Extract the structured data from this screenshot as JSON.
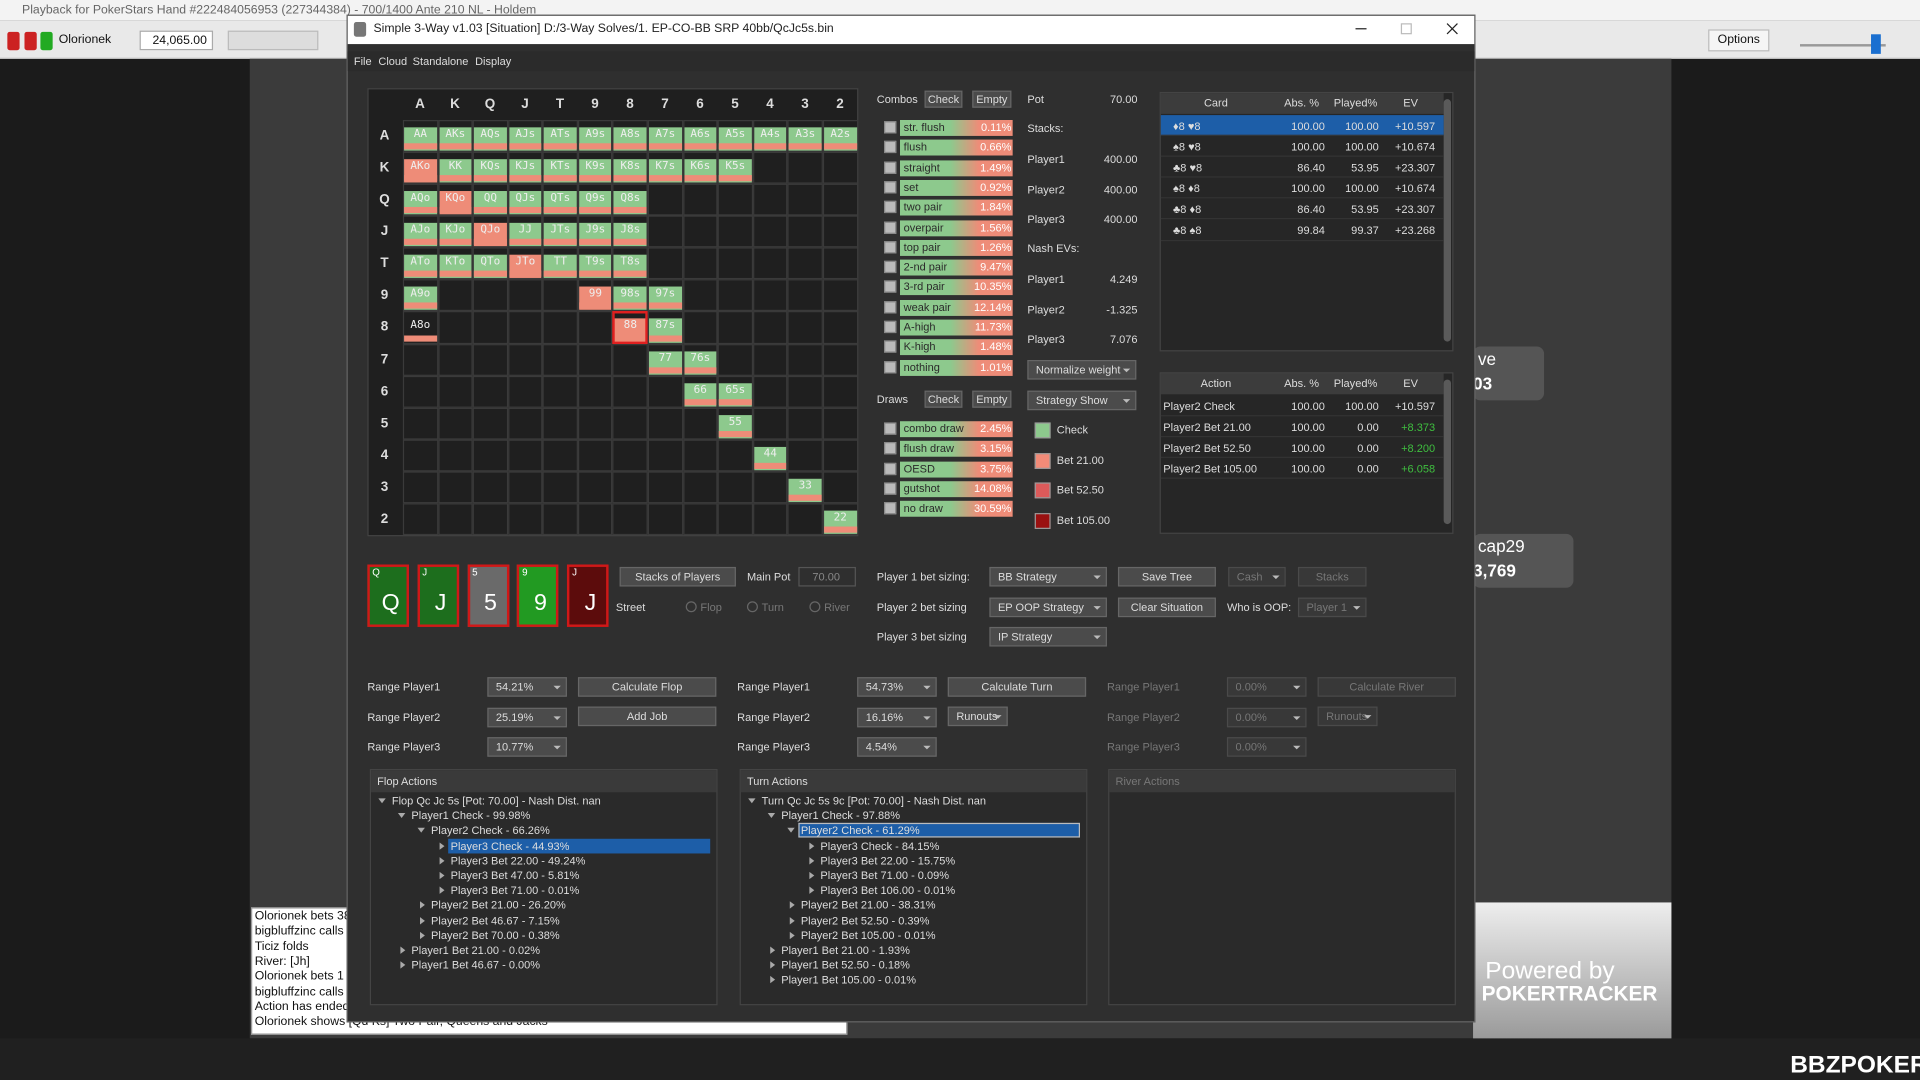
{
  "background_app": {
    "title": "Playback for PokerStars Hand #222484056953 (227344384) - 700/1400 Ante 210 NL - Holdem",
    "player": "Olorionek",
    "stack": "24,065.00",
    "options": "Options",
    "chat": [
      "Olorionek bets 38",
      "bigbluffzinc calls",
      "Ticiz folds",
      "River: [Jh]",
      "Olorionek bets 1",
      "bigbluffzinc calls",
      "Action has ended",
      "Olorionek shows [Qd Ks] Two Pair, Queens and Jacks"
    ],
    "seats": [
      {
        "name": "ve",
        "stack": "03"
      },
      {
        "name": "cap29",
        "stack": "3,769"
      }
    ],
    "powered_by": "Powered by",
    "brand": "POKERTRACKER",
    "watermark": "BBZPOKER"
  },
  "window": {
    "title": "Simple 3-Way v1.03 [Situation] D:/3-Way Solves/1. EP-CO-BB SRP 40bb/QcJc5s.bin",
    "menu": [
      "File",
      "Cloud",
      "Standalone",
      "Display"
    ]
  },
  "range_grid": {
    "columns": [
      "A",
      "K",
      "Q",
      "J",
      "T",
      "9",
      "8",
      "7",
      "6",
      "5",
      "4",
      "3",
      "2"
    ],
    "rows": [
      {
        "label": "A",
        "cells": [
          "AA",
          "AKs",
          "AQs",
          "AJs",
          "ATs",
          "A9s",
          "A8s",
          "A7s",
          "A6s",
          "A5s",
          "A4s",
          "A3s",
          "A2s"
        ]
      },
      {
        "label": "K",
        "cells": [
          "AKo",
          "KK",
          "KQs",
          "KJs",
          "KTs",
          "K9s",
          "K8s",
          "K7s",
          "K6s",
          "K5s",
          null,
          null,
          null
        ]
      },
      {
        "label": "Q",
        "cells": [
          "AQo",
          "KQo",
          "QQ",
          "QJs",
          "QTs",
          "Q9s",
          "Q8s",
          null,
          null,
          null,
          null,
          null,
          null
        ]
      },
      {
        "label": "J",
        "cells": [
          "AJo",
          "KJo",
          "QJo",
          "JJ",
          "JTs",
          "J9s",
          "J8s",
          null,
          null,
          null,
          null,
          null,
          null
        ]
      },
      {
        "label": "T",
        "cells": [
          "ATo",
          "KTo",
          "QTo",
          "JTo",
          "TT",
          "T9s",
          "T8s",
          null,
          null,
          null,
          null,
          null,
          null
        ]
      },
      {
        "label": "9",
        "cells": [
          "A9o",
          null,
          null,
          null,
          null,
          "99",
          "98s",
          "97s",
          null,
          null,
          null,
          null,
          null
        ]
      },
      {
        "label": "8",
        "cells": [
          "A8o",
          null,
          null,
          null,
          null,
          null,
          "88",
          "87s",
          null,
          null,
          null,
          null,
          null
        ]
      },
      {
        "label": "7",
        "cells": [
          null,
          null,
          null,
          null,
          null,
          null,
          null,
          "77",
          "76s",
          null,
          null,
          null,
          null
        ]
      },
      {
        "label": "6",
        "cells": [
          null,
          null,
          null,
          null,
          null,
          null,
          null,
          null,
          "66",
          "65s",
          null,
          null,
          null
        ]
      },
      {
        "label": "5",
        "cells": [
          null,
          null,
          null,
          null,
          null,
          null,
          null,
          null,
          null,
          "55",
          null,
          null,
          null
        ]
      },
      {
        "label": "4",
        "cells": [
          null,
          null,
          null,
          null,
          null,
          null,
          null,
          null,
          null,
          null,
          "44",
          null,
          null
        ]
      },
      {
        "label": "3",
        "cells": [
          null,
          null,
          null,
          null,
          null,
          null,
          null,
          null,
          null,
          null,
          null,
          "33",
          null
        ]
      },
      {
        "label": "2",
        "cells": [
          null,
          null,
          null,
          null,
          null,
          null,
          null,
          null,
          null,
          null,
          null,
          null,
          "22"
        ]
      }
    ]
  },
  "combos": {
    "title": "Combos",
    "check": "Check",
    "empty": "Empty",
    "items": [
      {
        "label": "str. flush",
        "value": "0.11%"
      },
      {
        "label": "flush",
        "value": "0.66%"
      },
      {
        "label": "straight",
        "value": "1.49%"
      },
      {
        "label": "set",
        "value": "0.92%"
      },
      {
        "label": "two pair",
        "value": "1.84%"
      },
      {
        "label": "overpair",
        "value": "1.56%"
      },
      {
        "label": "top pair",
        "value": "1.26%"
      },
      {
        "label": "2-nd pair",
        "value": "9.47%"
      },
      {
        "label": "3-rd pair",
        "value": "10.35%"
      },
      {
        "label": "weak pair",
        "value": "12.14%"
      },
      {
        "label": "A-high",
        "value": "11.73%"
      },
      {
        "label": "K-high",
        "value": "1.48%"
      },
      {
        "label": "nothing",
        "value": "1.01%"
      }
    ]
  },
  "draws": {
    "title": "Draws",
    "check": "Check",
    "empty": "Empty",
    "items": [
      {
        "label": "combo draw",
        "value": "2.45%"
      },
      {
        "label": "flush draw",
        "value": "3.15%"
      },
      {
        "label": "OESD",
        "value": "3.75%"
      },
      {
        "label": "gutshot",
        "value": "14.08%"
      },
      {
        "label": "no draw",
        "value": "30.59%"
      }
    ]
  },
  "pot": {
    "label": "Pot",
    "value": "70.00"
  },
  "stacks": {
    "label": "Stacks:",
    "players": [
      {
        "name": "Player1",
        "value": "400.00"
      },
      {
        "name": "Player2",
        "value": "400.00"
      },
      {
        "name": "Player3",
        "value": "400.00"
      }
    ]
  },
  "nash_evs": {
    "label": "Nash EVs:",
    "players": [
      {
        "name": "Player1",
        "value": "4.249"
      },
      {
        "name": "Player2",
        "value": "-1.325"
      },
      {
        "name": "Player3",
        "value": "7.076"
      }
    ]
  },
  "normalize": "Normalize weight",
  "strategy_show": "Strategy Show",
  "legend": [
    {
      "label": "Check",
      "color": "#8dc98d"
    },
    {
      "label": "Bet 21.00",
      "color": "#f28b78"
    },
    {
      "label": "Bet 52.50",
      "color": "#dc5a5a"
    },
    {
      "label": "Bet 105.00",
      "color": "#9a1010"
    }
  ],
  "card_table": {
    "headers": [
      "Card",
      "Abs. %",
      "Played%",
      "EV"
    ],
    "rows": [
      [
        "♦8 ♥8",
        "100.00",
        "100.00",
        "+10.597"
      ],
      [
        "♠8 ♥8",
        "100.00",
        "100.00",
        "+10.674"
      ],
      [
        "♣8 ♥8",
        "86.40",
        "53.95",
        "+23.307"
      ],
      [
        "♠8 ♦8",
        "100.00",
        "100.00",
        "+10.674"
      ],
      [
        "♣8 ♦8",
        "86.40",
        "53.95",
        "+23.307"
      ],
      [
        "♣8 ♠8",
        "99.84",
        "99.37",
        "+23.268"
      ]
    ]
  },
  "action_table": {
    "headers": [
      "Action",
      "Abs. %",
      "Played%",
      "EV"
    ],
    "rows": [
      [
        "Player2 Check",
        "100.00",
        "100.00",
        "+10.597"
      ],
      [
        "Player2 Bet 21.00",
        "100.00",
        "0.00",
        "+8.373"
      ],
      [
        "Player2 Bet 52.50",
        "100.00",
        "0.00",
        "+8.200"
      ],
      [
        "Player2 Bet 105.00",
        "100.00",
        "0.00",
        "+6.058"
      ]
    ]
  },
  "board": {
    "cards": [
      {
        "rank": "Q",
        "color": "#1d6e1d"
      },
      {
        "rank": "J",
        "color": "#1d6e1d"
      },
      {
        "rank": "5",
        "color": "#6a6a6a"
      },
      {
        "rank": "9",
        "color": "#229a22"
      },
      {
        "rank": "J",
        "color": "#5c0c0c"
      }
    ]
  },
  "controls": {
    "stacks_of_players": "Stacks of Players",
    "main_pot_label": "Main Pot",
    "main_pot": "70.00",
    "street_label": "Street",
    "streets": [
      "Flop",
      "Turn",
      "River"
    ],
    "bet_sizing": [
      {
        "label": "Player 1 bet sizing:",
        "value": "BB Strategy"
      },
      {
        "label": "Player 2 bet sizing",
        "value": "EP OOP Strategy"
      },
      {
        "label": "Player 3 bet sizing",
        "value": "IP Strategy"
      }
    ],
    "save_tree": "Save Tree",
    "clear_situation": "Clear Situation",
    "cash": "Cash",
    "stacks": "Stacks",
    "who_is_oop": "Who is OOP:",
    "oop_player": "Player 1"
  },
  "ranges": [
    {
      "rows": [
        {
          "label": "Range Player1",
          "value": "54.21%"
        },
        {
          "label": "Range Player2",
          "value": "25.19%"
        },
        {
          "label": "Range Player3",
          "value": "10.77%"
        }
      ],
      "buttons": [
        "Calculate Flop",
        "Add Job"
      ]
    },
    {
      "rows": [
        {
          "label": "Range Player1",
          "value": "54.73%"
        },
        {
          "label": "Range Player2",
          "value": "16.16%"
        },
        {
          "label": "Range Player3",
          "value": "4.54%"
        }
      ],
      "buttons": [
        "Calculate Turn",
        "Runouts"
      ]
    },
    {
      "rows": [
        {
          "label": "Range Player1",
          "value": "0.00%"
        },
        {
          "label": "Range Player2",
          "value": "0.00%"
        },
        {
          "label": "Range Player3",
          "value": "0.00%"
        }
      ],
      "buttons": [
        "Calculate River",
        "Runouts"
      ]
    }
  ],
  "flop_actions": {
    "title": "Flop Actions",
    "tree": [
      {
        "label": "Flop Qc Jc 5s [Pot: 70.00] - Nash Dist. nan",
        "children": [
          {
            "label": "Player1 Check - 99.98%",
            "children": [
              {
                "label": "Player2 Check - 66.26%",
                "children": [
                  {
                    "label": "Player3 Check - 44.93%"
                  },
                  {
                    "label": "Player3 Bet 22.00 - 49.24%"
                  },
                  {
                    "label": "Player3 Bet 47.00 - 5.81%"
                  },
                  {
                    "label": "Player3 Bet 71.00 - 0.01%"
                  }
                ]
              },
              {
                "label": "Player2 Bet 21.00 - 26.20%"
              },
              {
                "label": "Player2 Bet 46.67 - 7.15%"
              },
              {
                "label": "Player2 Bet 70.00 - 0.38%"
              }
            ]
          },
          {
            "label": "Player1 Bet 21.00 - 0.02%"
          },
          {
            "label": "Player1 Bet 46.67 - 0.00%"
          }
        ]
      }
    ]
  },
  "turn_actions": {
    "title": "Turn Actions",
    "tree": [
      {
        "label": "Turn Qc Jc 5s 9c [Pot: 70.00] - Nash Dist. nan",
        "children": [
          {
            "label": "Player1 Check - 97.88%",
            "children": [
              {
                "label": "Player2 Check - 61.29%",
                "children": [
                  {
                    "label": "Player3 Check - 84.15%"
                  },
                  {
                    "label": "Player3 Bet 22.00 - 15.75%"
                  },
                  {
                    "label": "Player3 Bet 71.00 - 0.09%"
                  },
                  {
                    "label": "Player3 Bet 106.00 - 0.01%"
                  }
                ]
              },
              {
                "label": "Player2 Bet 21.00 - 38.31%"
              },
              {
                "label": "Player2 Bet 52.50 - 0.39%"
              },
              {
                "label": "Player2 Bet 105.00 - 0.01%"
              }
            ]
          },
          {
            "label": "Player1 Bet 21.00 - 1.93%"
          },
          {
            "label": "Player1 Bet 52.50 - 0.18%"
          },
          {
            "label": "Player1 Bet 105.00 - 0.01%"
          }
        ]
      }
    ]
  },
  "river_actions": {
    "title": "River Actions"
  }
}
